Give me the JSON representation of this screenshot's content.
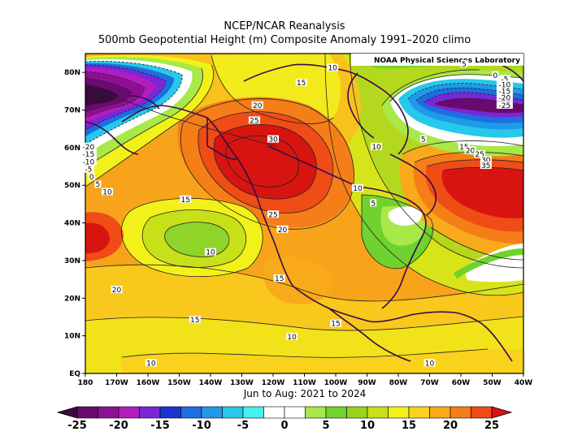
{
  "title": {
    "line1": "NCEP/NCAR Reanalysis",
    "line2": "500mb Geopotential Height (m) Composite Anomaly 1991–2020 climo"
  },
  "credit": "NOAA Physical Sciences Laboratory",
  "period": "Jun to Aug: 2021 to 2024",
  "lat_labels": [
    "80N",
    "70N",
    "60N",
    "50N",
    "40N",
    "30N",
    "20N",
    "10N",
    "EQ"
  ],
  "lon_labels": [
    "180",
    "170W",
    "160W",
    "150W",
    "140W",
    "130W",
    "120W",
    "110W",
    "100W",
    "90W",
    "80W",
    "70W",
    "60W",
    "50W",
    "40W"
  ],
  "colorbar": {
    "labels": [
      "-25",
      "-20",
      "-15",
      "-10",
      "-5",
      "0",
      "5",
      "10",
      "15",
      "20",
      "25"
    ],
    "colors": [
      "#3a0a3c",
      "#6a0a6e",
      "#8e0f94",
      "#b31cc0",
      "#7a27d6",
      "#1a34d0",
      "#1e6de2",
      "#1f9ae8",
      "#27c8ea",
      "#45f0f0",
      "#ffffff",
      "#ffffff",
      "#a8e848",
      "#6fd22e",
      "#9cd21e",
      "#c8e01a",
      "#f2f21a",
      "#f8d21c",
      "#f8aa1a",
      "#f57e18",
      "#ef4c16",
      "#d81410"
    ]
  },
  "contour_labels": [
    {
      "text": "10",
      "lon": -101,
      "lat": 81
    },
    {
      "text": "15",
      "lon": -111,
      "lat": 77
    },
    {
      "text": "20",
      "lon": -125,
      "lat": 71
    },
    {
      "text": "25",
      "lon": -126,
      "lat": 67
    },
    {
      "text": "30",
      "lon": -120,
      "lat": 62
    },
    {
      "text": "25",
      "lon": -120,
      "lat": 42
    },
    {
      "text": "20",
      "lon": -117,
      "lat": 38
    },
    {
      "text": "15",
      "lon": -148,
      "lat": 46
    },
    {
      "text": "10",
      "lon": -140,
      "lat": 32
    },
    {
      "text": "15",
      "lon": -118,
      "lat": 25
    },
    {
      "text": "20",
      "lon": -170,
      "lat": 22
    },
    {
      "text": "15",
      "lon": -145,
      "lat": 14
    },
    {
      "text": "15",
      "lon": -100,
      "lat": 13
    },
    {
      "text": "10",
      "lon": -114,
      "lat": 9.5
    },
    {
      "text": "10",
      "lon": -159,
      "lat": 2.5
    },
    {
      "text": "10",
      "lon": -70,
      "lat": 2.5
    },
    {
      "text": "10",
      "lon": -93,
      "lat": 49
    },
    {
      "text": "5",
      "lon": -88,
      "lat": 45
    },
    {
      "text": "10",
      "lon": -87,
      "lat": 60
    },
    {
      "text": "5",
      "lon": -72,
      "lat": 62
    },
    {
      "text": "5",
      "lon": -59,
      "lat": 82
    },
    {
      "text": "0",
      "lon": -49,
      "lat": 79
    },
    {
      "text": "-5",
      "lon": -46,
      "lat": 78
    },
    {
      "text": "-10",
      "lon": -46,
      "lat": 76.5
    },
    {
      "text": "-15",
      "lon": -46,
      "lat": 74.7
    },
    {
      "text": "-20",
      "lon": -46,
      "lat": 73
    },
    {
      "text": "-25",
      "lon": -46,
      "lat": 71
    },
    {
      "text": "15",
      "lon": -59,
      "lat": 60
    },
    {
      "text": "20",
      "lon": -57,
      "lat": 59
    },
    {
      "text": "25",
      "lon": -54,
      "lat": 58
    },
    {
      "text": "30",
      "lon": -52,
      "lat": 56.5
    },
    {
      "text": "35",
      "lon": -52,
      "lat": 55
    },
    {
      "text": "-20",
      "lon": -179,
      "lat": 60
    },
    {
      "text": "-15",
      "lon": -179,
      "lat": 58
    },
    {
      "text": "-10",
      "lon": -179,
      "lat": 56
    },
    {
      "text": "-5",
      "lon": -179,
      "lat": 54
    },
    {
      "text": "0",
      "lon": -178,
      "lat": 52
    },
    {
      "text": "5",
      "lon": -176,
      "lat": 50
    },
    {
      "text": "10",
      "lon": -173,
      "lat": 48
    }
  ]
}
